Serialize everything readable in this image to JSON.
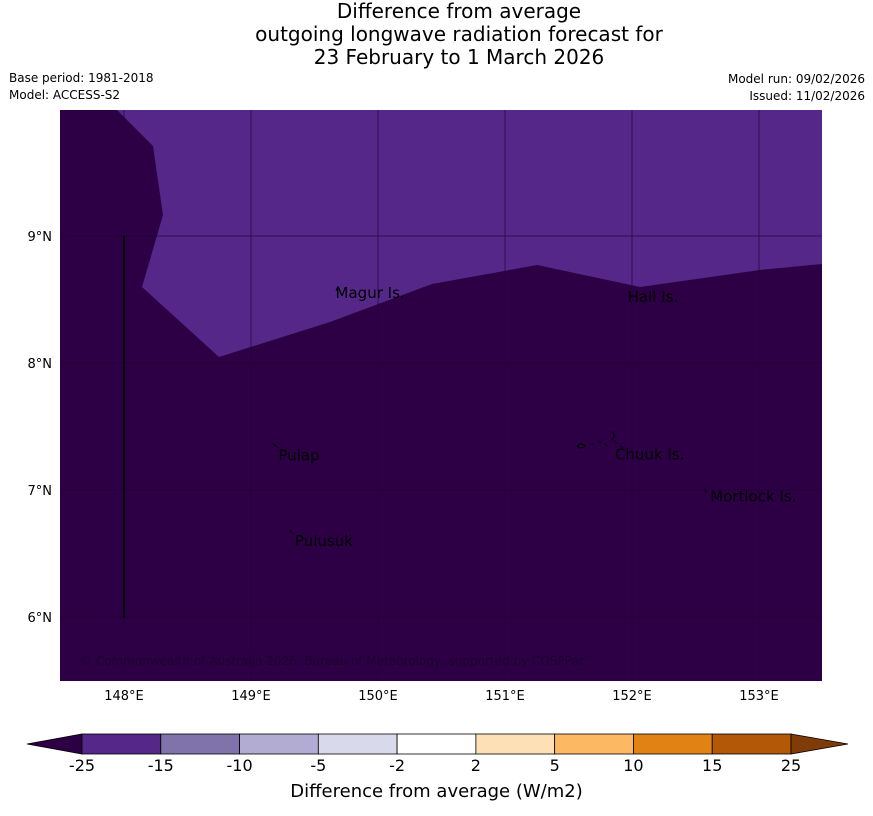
{
  "title": {
    "line1": "Difference from average",
    "line2": "outgoing longwave radiation forecast for",
    "line3": "23 February to 1 March 2026"
  },
  "meta": {
    "base_period": "Base period: 1981-2018",
    "model": "Model: ACCESS-S2",
    "model_run": "Model run: 09/02/2026",
    "issued": "Issued: 11/02/2026"
  },
  "map": {
    "lon_ticks": [
      {
        "value": 148,
        "label": "148°E"
      },
      {
        "value": 149,
        "label": "149°E"
      },
      {
        "value": 150,
        "label": "150°E"
      },
      {
        "value": 151,
        "label": "151°E"
      },
      {
        "value": 152,
        "label": "152°E"
      },
      {
        "value": 153,
        "label": "153°E"
      }
    ],
    "lat_ticks": [
      {
        "value": 9,
        "label": "9°N"
      },
      {
        "value": 8,
        "label": "8°N"
      },
      {
        "value": 7,
        "label": "7°N"
      },
      {
        "value": 6,
        "label": "6°N"
      }
    ],
    "colors": {
      "below_25": "#2d0046",
      "minus25_minus15": "#542788",
      "grid": "#1d0030",
      "land": "#000000"
    },
    "places": [
      {
        "name": "Magur Is.",
        "lon": 149.65,
        "lat": 8.55
      },
      {
        "name": "Hall Is.",
        "lon": 151.95,
        "lat": 8.52
      },
      {
        "name": "Pulap",
        "lon": 149.2,
        "lat": 7.27
      },
      {
        "name": "Chuuk Is.",
        "lon": 151.85,
        "lat": 7.28
      },
      {
        "name": "Mortlock Is.",
        "lon": 152.6,
        "lat": 6.95
      },
      {
        "name": "Pulusuk",
        "lon": 149.33,
        "lat": 6.6
      }
    ],
    "copyright": "© Commonwealth of Australia 2026, Bureau of Meteorology, supported by COSPPac"
  },
  "colorbar": {
    "title": "Difference from average (W/m2)",
    "under_color": "#2d0046",
    "over_color": "#7f3b08",
    "bins": [
      {
        "color": "#542788"
      },
      {
        "color": "#8073ac"
      },
      {
        "color": "#b2abd2"
      },
      {
        "color": "#d8daeb"
      },
      {
        "color": "#ffffff"
      },
      {
        "color": "#fee0b6"
      },
      {
        "color": "#fdb863"
      },
      {
        "color": "#e08214"
      },
      {
        "color": "#b35806"
      }
    ],
    "labels": [
      "-25",
      "-15",
      "-10",
      "-5",
      "-2",
      "2",
      "5",
      "10",
      "15",
      "25"
    ]
  }
}
